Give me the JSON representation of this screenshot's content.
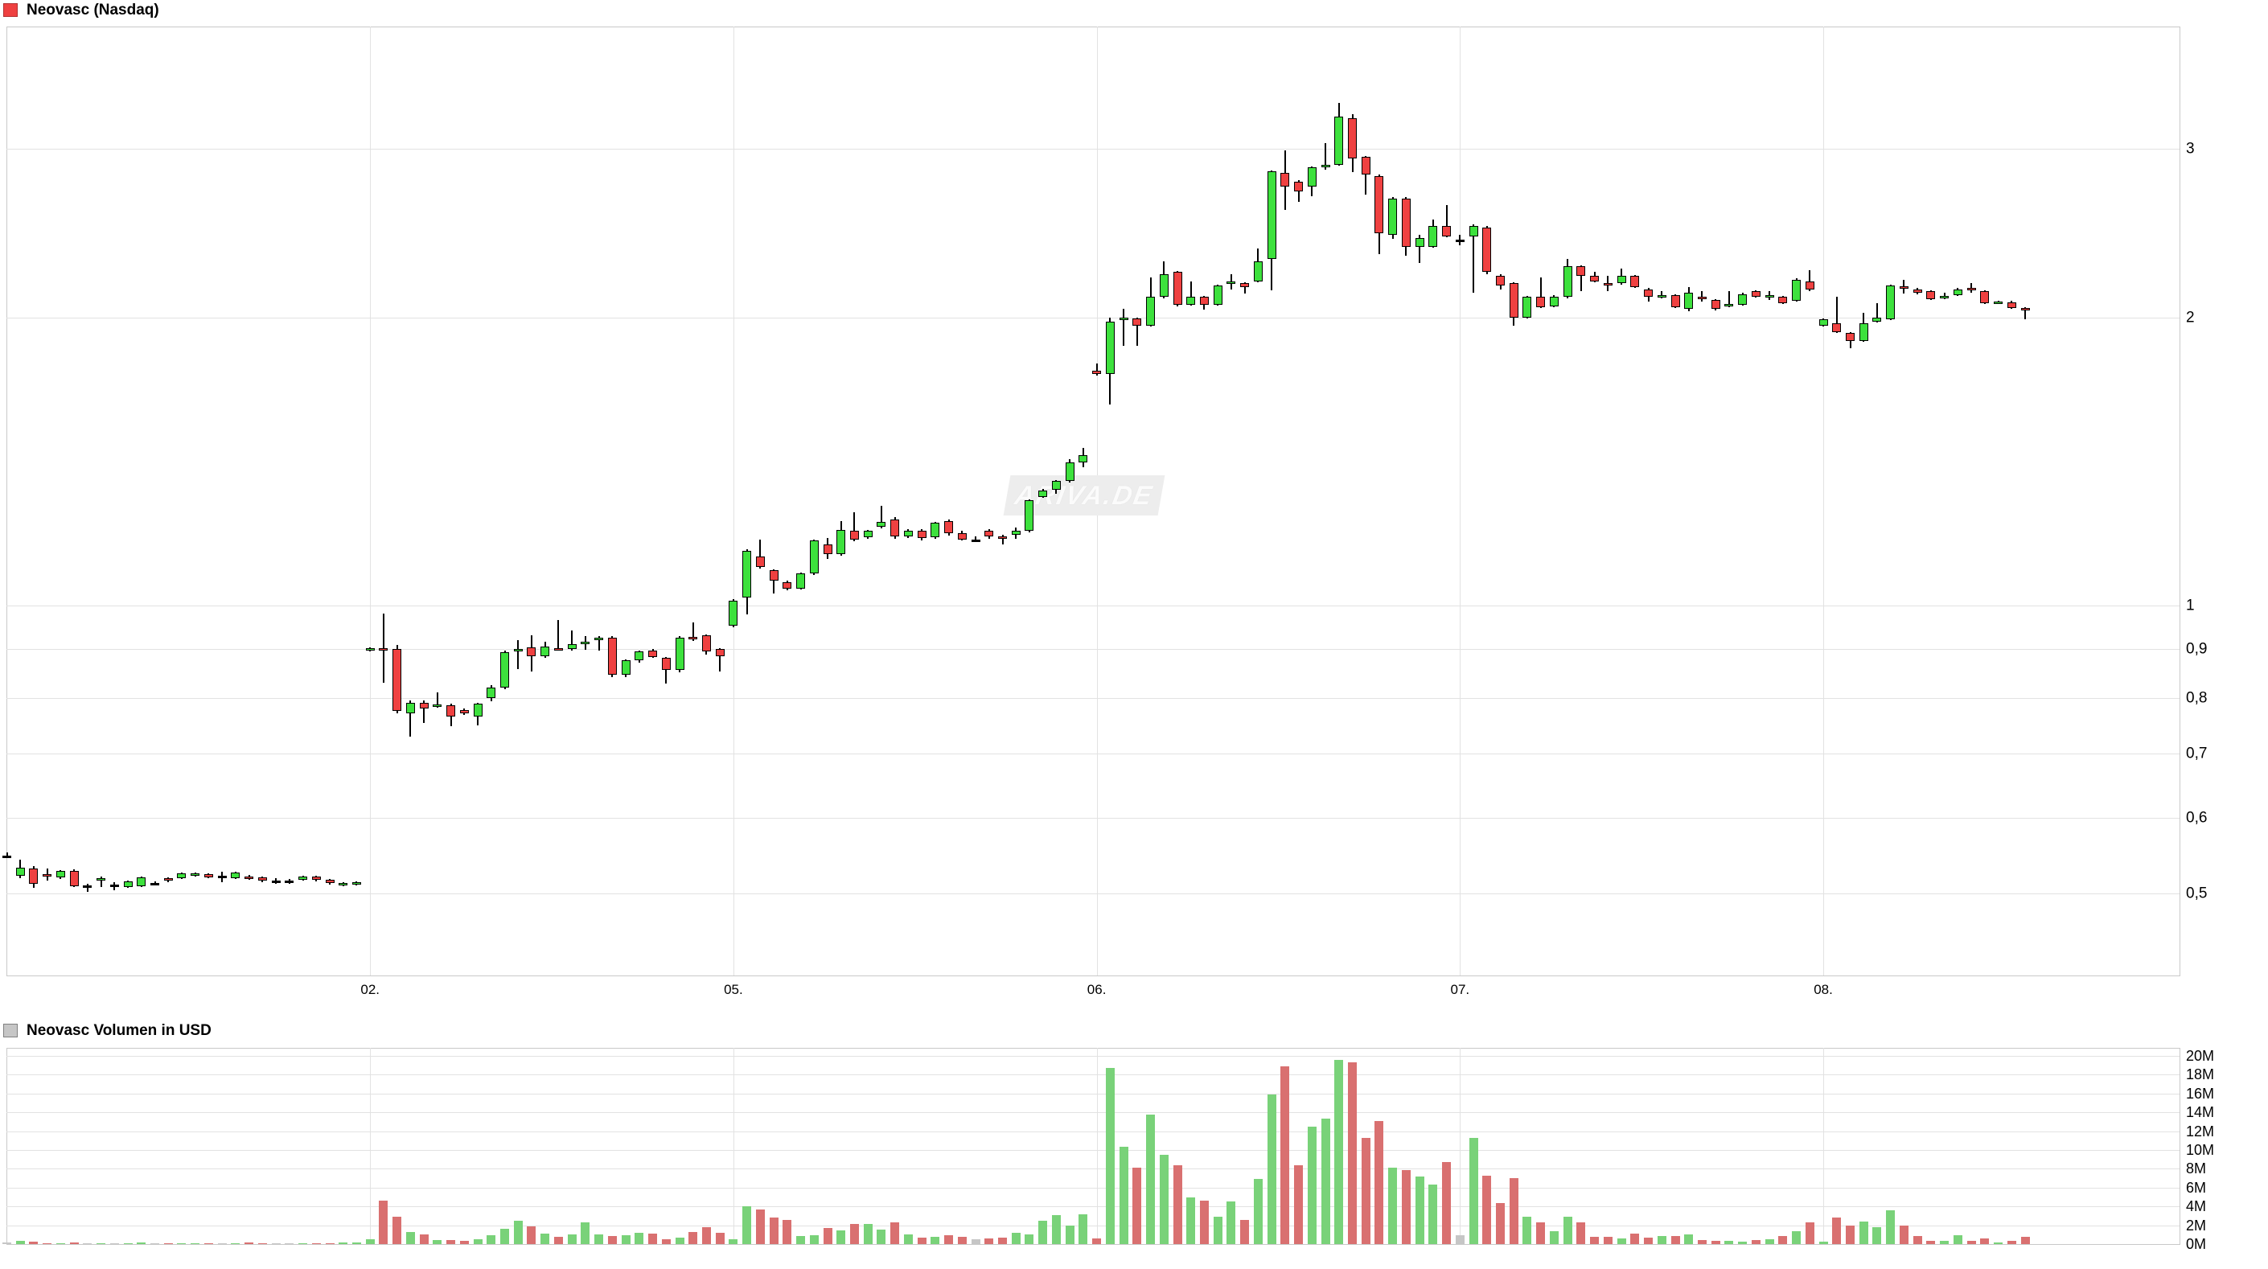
{
  "header": {
    "title": "Neovasc (Nasdaq)"
  },
  "volume_header": {
    "title": "Neovasc Volumen in USD"
  },
  "watermark": "ARIVA.DE",
  "colors": {
    "candle_up": "#3de13d",
    "candle_down": "#ef4141",
    "candle_border": "#000000",
    "volume_up": "#79d279",
    "volume_down": "#d97070",
    "volume_neutral": "#c6c6c6",
    "grid": "#e2e2e2",
    "frame": "#c9c9c9",
    "title_swatch_price": "#ef4141",
    "title_swatch_volume": "#c6c6c6",
    "background": "#ffffff"
  },
  "chart_data": {
    "type": "candlestick+volume",
    "title": "Neovasc (Nasdaq)",
    "volume_title": "Neovasc Volumen in USD",
    "price_scale": "log",
    "price_axis_labels": [
      {
        "text": "3",
        "value": 3.0
      },
      {
        "text": "2",
        "value": 2.0
      },
      {
        "text": "1",
        "value": 1.0
      },
      {
        "text": "0,9",
        "value": 0.9
      },
      {
        "text": "0,8",
        "value": 0.8
      },
      {
        "text": "0,7",
        "value": 0.7
      },
      {
        "text": "0,6",
        "value": 0.6
      },
      {
        "text": "0,5",
        "value": 0.5
      }
    ],
    "volume_axis_labels": [
      {
        "text": "20M",
        "value": 20
      },
      {
        "text": "18M",
        "value": 18
      },
      {
        "text": "16M",
        "value": 16
      },
      {
        "text": "14M",
        "value": 14
      },
      {
        "text": "12M",
        "value": 12
      },
      {
        "text": "10M",
        "value": 10
      },
      {
        "text": "8M",
        "value": 8
      },
      {
        "text": "6M",
        "value": 6
      },
      {
        "text": "4M",
        "value": 4
      },
      {
        "text": "2M",
        "value": 2
      },
      {
        "text": "0M",
        "value": 0
      }
    ],
    "x_axis": {
      "labels": [
        "02.",
        "05.",
        "06.",
        "07.",
        "08."
      ],
      "day_start_indices": [
        27,
        54,
        81,
        108,
        135
      ]
    },
    "candles_ohlc": [
      [
        0.548,
        0.552,
        0.546,
        0.548
      ],
      [
        0.522,
        0.543,
        0.519,
        0.532
      ],
      [
        0.531,
        0.534,
        0.507,
        0.512
      ],
      [
        0.524,
        0.531,
        0.516,
        0.523
      ],
      [
        0.52,
        0.529,
        0.518,
        0.528
      ],
      [
        0.528,
        0.53,
        0.508,
        0.509
      ],
      [
        0.51,
        0.512,
        0.502,
        0.51
      ],
      [
        0.517,
        0.521,
        0.508,
        0.519
      ],
      [
        0.511,
        0.514,
        0.504,
        0.511
      ],
      [
        0.508,
        0.516,
        0.507,
        0.515
      ],
      [
        0.509,
        0.521,
        0.508,
        0.52
      ],
      [
        0.513,
        0.515,
        0.511,
        0.513
      ],
      [
        0.519,
        0.52,
        0.514,
        0.516
      ],
      [
        0.519,
        0.526,
        0.518,
        0.525
      ],
      [
        0.523,
        0.526,
        0.521,
        0.525
      ],
      [
        0.524,
        0.525,
        0.519,
        0.52
      ],
      [
        0.522,
        0.527,
        0.514,
        0.522
      ],
      [
        0.519,
        0.527,
        0.518,
        0.526
      ],
      [
        0.521,
        0.523,
        0.517,
        0.519
      ],
      [
        0.52,
        0.521,
        0.514,
        0.516
      ],
      [
        0.516,
        0.519,
        0.512,
        0.516
      ],
      [
        0.516,
        0.518,
        0.512,
        0.516
      ],
      [
        0.517,
        0.522,
        0.516,
        0.521
      ],
      [
        0.521,
        0.522,
        0.515,
        0.517
      ],
      [
        0.517,
        0.518,
        0.511,
        0.513
      ],
      [
        0.51,
        0.514,
        0.509,
        0.513
      ],
      [
        0.511,
        0.515,
        0.51,
        0.514
      ],
      [
        0.899,
        0.904,
        0.896,
        0.902
      ],
      [
        0.902,
        0.98,
        0.83,
        0.898
      ],
      [
        0.9,
        0.91,
        0.772,
        0.776
      ],
      [
        0.772,
        0.796,
        0.73,
        0.792
      ],
      [
        0.791,
        0.796,
        0.754,
        0.78
      ],
      [
        0.786,
        0.811,
        0.782,
        0.788
      ],
      [
        0.786,
        0.789,
        0.748,
        0.766
      ],
      [
        0.778,
        0.781,
        0.769,
        0.772
      ],
      [
        0.765,
        0.791,
        0.75,
        0.789
      ],
      [
        0.8,
        0.826,
        0.794,
        0.821
      ],
      [
        0.821,
        0.897,
        0.818,
        0.894
      ],
      [
        0.897,
        0.921,
        0.859,
        0.901
      ],
      [
        0.905,
        0.931,
        0.854,
        0.886
      ],
      [
        0.886,
        0.916,
        0.881,
        0.906
      ],
      [
        0.903,
        0.966,
        0.898,
        0.899
      ],
      [
        0.9,
        0.941,
        0.897,
        0.911
      ],
      [
        0.914,
        0.929,
        0.899,
        0.916
      ],
      [
        0.924,
        0.929,
        0.897,
        0.926
      ],
      [
        0.926,
        0.929,
        0.842,
        0.846
      ],
      [
        0.846,
        0.879,
        0.842,
        0.876
      ],
      [
        0.876,
        0.898,
        0.872,
        0.896
      ],
      [
        0.898,
        0.901,
        0.882,
        0.884
      ],
      [
        0.881,
        0.883,
        0.829,
        0.856
      ],
      [
        0.856,
        0.929,
        0.852,
        0.926
      ],
      [
        0.927,
        0.961,
        0.919,
        0.923
      ],
      [
        0.931,
        0.933,
        0.889,
        0.896
      ],
      [
        0.901,
        0.903,
        0.854,
        0.886
      ],
      [
        0.953,
        1.016,
        0.949,
        1.012
      ],
      [
        1.02,
        1.146,
        0.979,
        1.14
      ],
      [
        1.126,
        1.171,
        1.094,
        1.098
      ],
      [
        1.088,
        1.091,
        1.029,
        1.062
      ],
      [
        1.057,
        1.061,
        1.037,
        1.041
      ],
      [
        1.042,
        1.083,
        1.039,
        1.08
      ],
      [
        1.081,
        1.173,
        1.076,
        1.17
      ],
      [
        1.159,
        1.176,
        1.119,
        1.131
      ],
      [
        1.131,
        1.226,
        1.128,
        1.2
      ],
      [
        1.197,
        1.251,
        1.167,
        1.171
      ],
      [
        1.179,
        1.199,
        1.174,
        1.196
      ],
      [
        1.209,
        1.271,
        1.204,
        1.224
      ],
      [
        1.231,
        1.236,
        1.174,
        1.181
      ],
      [
        1.181,
        1.201,
        1.176,
        1.196
      ],
      [
        1.196,
        1.201,
        1.169,
        1.176
      ],
      [
        1.179,
        1.223,
        1.174,
        1.22
      ],
      [
        1.226,
        1.231,
        1.184,
        1.191
      ],
      [
        1.191,
        1.196,
        1.169,
        1.173
      ],
      [
        1.173,
        1.181,
        1.167,
        1.173
      ],
      [
        1.198,
        1.201,
        1.174,
        1.181
      ],
      [
        1.182,
        1.185,
        1.159,
        1.179
      ],
      [
        1.186,
        1.206,
        1.174,
        1.196
      ],
      [
        1.196,
        1.291,
        1.193,
        1.288
      ],
      [
        1.299,
        1.323,
        1.295,
        1.319
      ],
      [
        1.321,
        1.353,
        1.309,
        1.349
      ],
      [
        1.351,
        1.421,
        1.344,
        1.412
      ],
      [
        1.412,
        1.462,
        1.394,
        1.436
      ],
      [
        1.758,
        1.791,
        1.739,
        1.745
      ],
      [
        1.745,
        2.001,
        1.621,
        1.981
      ],
      [
        1.989,
        2.041,
        1.869,
        2.0
      ],
      [
        1.996,
        2.001,
        1.868,
        1.962
      ],
      [
        1.961,
        2.201,
        1.956,
        2.101
      ],
      [
        2.101,
        2.291,
        2.096,
        2.221
      ],
      [
        2.231,
        2.236,
        2.054,
        2.061
      ],
      [
        2.061,
        2.181,
        2.056,
        2.101
      ],
      [
        2.101,
        2.106,
        2.039,
        2.061
      ],
      [
        2.061,
        2.166,
        2.058,
        2.161
      ],
      [
        2.176,
        2.221,
        2.139,
        2.181
      ],
      [
        2.171,
        2.176,
        2.119,
        2.151
      ],
      [
        2.181,
        2.361,
        2.176,
        2.291
      ],
      [
        2.301,
        2.851,
        2.136,
        2.841
      ],
      [
        2.831,
        2.991,
        2.589,
        2.741
      ],
      [
        2.771,
        2.781,
        2.639,
        2.711
      ],
      [
        2.741,
        2.876,
        2.679,
        2.871
      ],
      [
        2.879,
        3.041,
        2.856,
        2.889
      ],
      [
        2.889,
        3.351,
        2.881,
        3.241
      ],
      [
        3.231,
        3.261,
        2.839,
        2.931
      ],
      [
        2.941,
        2.951,
        2.689,
        2.821
      ],
      [
        2.811,
        2.821,
        2.329,
        2.451
      ],
      [
        2.441,
        2.671,
        2.416,
        2.661
      ],
      [
        2.661,
        2.671,
        2.319,
        2.371
      ],
      [
        2.371,
        2.441,
        2.279,
        2.421
      ],
      [
        2.371,
        2.531,
        2.366,
        2.491
      ],
      [
        2.491,
        2.621,
        2.426,
        2.431
      ],
      [
        2.41,
        2.44,
        2.38,
        2.41
      ],
      [
        2.431,
        2.501,
        2.121,
        2.491
      ],
      [
        2.481,
        2.491,
        2.221,
        2.231
      ],
      [
        2.211,
        2.221,
        2.139,
        2.161
      ],
      [
        2.171,
        2.176,
        1.959,
        2.001
      ],
      [
        2.001,
        2.106,
        1.996,
        2.101
      ],
      [
        2.101,
        2.201,
        2.046,
        2.051
      ],
      [
        2.056,
        2.111,
        2.051,
        2.101
      ],
      [
        2.101,
        2.301,
        2.096,
        2.261
      ],
      [
        2.261,
        2.266,
        2.129,
        2.211
      ],
      [
        2.211,
        2.231,
        2.176,
        2.181
      ],
      [
        2.172,
        2.211,
        2.131,
        2.168
      ],
      [
        2.171,
        2.251,
        2.166,
        2.211
      ],
      [
        2.211,
        2.216,
        2.146,
        2.151
      ],
      [
        2.141,
        2.146,
        2.079,
        2.101
      ],
      [
        2.108,
        2.131,
        2.096,
        2.112
      ],
      [
        2.111,
        2.116,
        2.046,
        2.051
      ],
      [
        2.041,
        2.151,
        2.029,
        2.121
      ],
      [
        2.102,
        2.131,
        2.076,
        2.098
      ],
      [
        2.086,
        2.091,
        2.036,
        2.041
      ],
      [
        2.055,
        2.131,
        2.051,
        2.065
      ],
      [
        2.061,
        2.121,
        2.056,
        2.116
      ],
      [
        2.131,
        2.136,
        2.099,
        2.101
      ],
      [
        2.108,
        2.131,
        2.086,
        2.112
      ],
      [
        2.101,
        2.106,
        2.066,
        2.071
      ],
      [
        2.081,
        2.196,
        2.076,
        2.191
      ],
      [
        2.181,
        2.241,
        2.131,
        2.141
      ],
      [
        1.961,
        1.996,
        1.956,
        1.991
      ],
      [
        1.971,
        2.101,
        1.926,
        1.931
      ],
      [
        1.926,
        1.931,
        1.859,
        1.891
      ],
      [
        1.891,
        2.021,
        1.886,
        1.971
      ],
      [
        1.981,
        2.071,
        1.976,
        2.001
      ],
      [
        1.991,
        2.166,
        1.986,
        2.161
      ],
      [
        2.154,
        2.191,
        2.119,
        2.15
      ],
      [
        2.141,
        2.146,
        2.116,
        2.121
      ],
      [
        2.131,
        2.136,
        2.086,
        2.091
      ],
      [
        2.095,
        2.121,
        2.091,
        2.105
      ],
      [
        2.111,
        2.146,
        2.106,
        2.141
      ],
      [
        2.146,
        2.171,
        2.121,
        2.142
      ],
      [
        2.131,
        2.136,
        2.066,
        2.071
      ],
      [
        2.076,
        2.081,
        2.071,
        2.08
      ],
      [
        2.075,
        2.081,
        2.041,
        2.046
      ],
      [
        2.046,
        2.051,
        1.991,
        2.042
      ]
    ],
    "volumes_musd": [
      0.15,
      0.3,
      0.25,
      0.1,
      0.12,
      0.2,
      0.1,
      0.08,
      0.1,
      0.12,
      0.15,
      0.1,
      0.08,
      0.1,
      0.12,
      0.1,
      0.08,
      0.1,
      0.15,
      0.12,
      0.1,
      0.08,
      0.1,
      0.12,
      0.1,
      0.15,
      0.2,
      0.5,
      4.6,
      2.9,
      1.3,
      1.0,
      0.45,
      0.4,
      0.3,
      0.5,
      0.9,
      1.6,
      2.5,
      1.9,
      1.1,
      0.8,
      1.0,
      2.3,
      1.0,
      0.85,
      0.95,
      1.2,
      1.1,
      0.55,
      0.7,
      1.3,
      1.8,
      1.2,
      0.5,
      4.0,
      3.7,
      2.85,
      2.6,
      0.85,
      0.9,
      1.7,
      1.45,
      2.1,
      2.1,
      1.55,
      2.35,
      1.05,
      0.7,
      0.8,
      0.97,
      0.8,
      0.5,
      0.6,
      0.7,
      1.2,
      1.0,
      2.5,
      3.1,
      2.0,
      3.2,
      0.6,
      18.7,
      10.3,
      8.1,
      13.8,
      9.5,
      8.4,
      5.0,
      4.6,
      2.9,
      4.5,
      2.6,
      6.9,
      15.9,
      18.9,
      8.4,
      12.5,
      13.3,
      19.6,
      19.3,
      11.3,
      13.1,
      8.1,
      7.9,
      7.2,
      6.3,
      8.7,
      0.9,
      11.3,
      7.3,
      4.4,
      7.0,
      2.9,
      2.3,
      1.4,
      2.9,
      2.3,
      0.75,
      0.75,
      0.6,
      1.1,
      0.66,
      0.88,
      0.82,
      1.0,
      0.47,
      0.33,
      0.38,
      0.25,
      0.47,
      0.52,
      0.88,
      1.4,
      2.3,
      0.27,
      2.8,
      2.0,
      2.4,
      1.8,
      3.6,
      2.0,
      0.82,
      0.33,
      0.38,
      0.93,
      0.38,
      0.6,
      0.14,
      0.33,
      0.74
    ],
    "price_ylim_log": [
      0.42,
      3.6
    ],
    "volume_ylim": [
      0,
      20
    ],
    "grid": true,
    "legend_position": "top-left"
  }
}
